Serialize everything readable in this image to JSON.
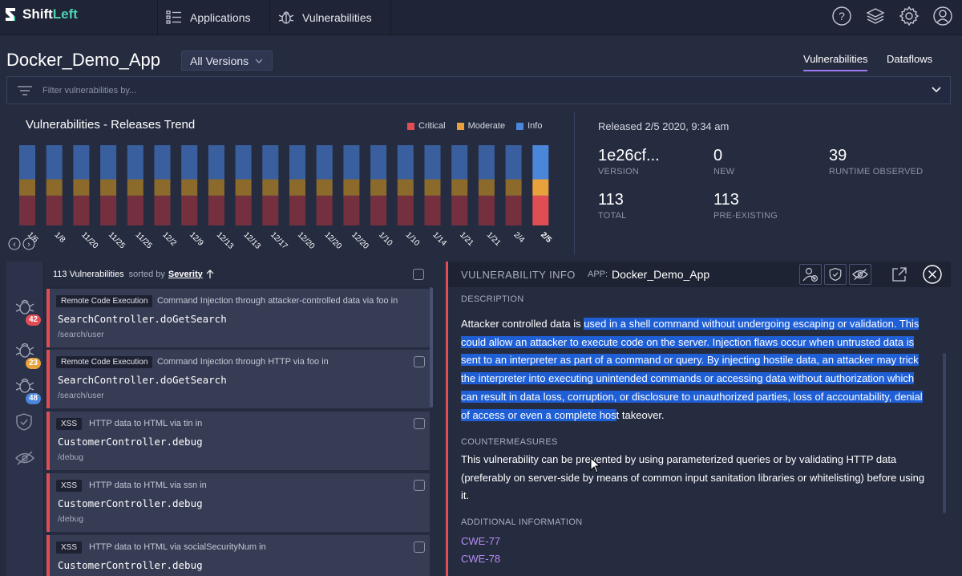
{
  "nav": {
    "logo_shift": "Shift",
    "logo_left": "Left",
    "applications": "Applications",
    "vulnerabilities": "Vulnerabilities",
    "icons": [
      "help-icon",
      "layers-icon",
      "settings-icon",
      "user-icon"
    ]
  },
  "header": {
    "app_title": "Docker_Demo_App",
    "versions": "All Versions",
    "tab_vulnerabilities": "Vulnerabilities",
    "tab_dataflows": "Dataflows",
    "filter_placeholder": "Filter vulnerabilities by..."
  },
  "chart_data": {
    "type": "bar",
    "title": "Vulnerabilities - Releases Trend",
    "categories": [
      "1/6",
      "1/8",
      "11/20",
      "11/25",
      "11/25",
      "12/2",
      "12/9",
      "12/13",
      "12/13",
      "12/17",
      "12/20",
      "12/20",
      "12/20",
      "1/10",
      "1/10",
      "1/14",
      "1/21",
      "1/21",
      "2/4",
      "2/5"
    ],
    "series": [
      {
        "name": "Critical",
        "color": "#e04d55",
        "values": [
          42,
          42,
          42,
          42,
          42,
          42,
          42,
          42,
          42,
          42,
          42,
          42,
          42,
          42,
          42,
          42,
          42,
          42,
          42,
          42
        ]
      },
      {
        "name": "Moderate",
        "color": "#e9a23b",
        "values": [
          23,
          23,
          23,
          23,
          23,
          23,
          23,
          23,
          23,
          23,
          23,
          23,
          23,
          23,
          23,
          23,
          23,
          23,
          23,
          23
        ]
      },
      {
        "name": "Info",
        "color": "#4a86d9",
        "values": [
          48,
          48,
          48,
          48,
          48,
          48,
          48,
          48,
          48,
          48,
          48,
          48,
          48,
          48,
          48,
          48,
          48,
          48,
          48,
          48
        ]
      }
    ],
    "selected_index": 19,
    "legend_position": "top-right",
    "grid": false
  },
  "release": {
    "released": "Released 2/5 2020, 9:34 am",
    "version_value": "1e26cf...",
    "version_label": "VERSION",
    "new_value": "0",
    "new_label": "NEW",
    "runtime_value": "39",
    "runtime_label": "RUNTIME OBSERVED",
    "total_value": "113",
    "total_label": "TOTAL",
    "preexisting_value": "113",
    "preexisting_label": "PRE-EXISTING"
  },
  "rail": {
    "critical_count": "42",
    "moderate_count": "23",
    "info_count": "48"
  },
  "list": {
    "count_label": "113 Vulnerabilities",
    "sorted_by": "sorted by",
    "sort_field": "Severity",
    "items": [
      {
        "tag": "Remote Code Execution",
        "desc": "Command Injection through attacker-controlled data via foo in",
        "method": "SearchController.doGetSearch",
        "path": "/search/user"
      },
      {
        "tag": "Remote Code Execution",
        "desc": "Command Injection through HTTP via foo in",
        "method": "SearchController.doGetSearch",
        "path": "/search/user"
      },
      {
        "tag": "XSS",
        "desc": "HTTP data to HTML via tin in",
        "method": "CustomerController.debug",
        "path": "/debug"
      },
      {
        "tag": "XSS",
        "desc": "HTTP data to HTML via ssn in",
        "method": "CustomerController.debug",
        "path": "/debug"
      },
      {
        "tag": "XSS",
        "desc": "HTTP data to HTML via socialSecurityNum in",
        "method": "CustomerController.debug",
        "path": ""
      }
    ]
  },
  "info": {
    "title": "VULNERABILITY INFO",
    "app_label": "APP:",
    "app_name": "Docker_Demo_App",
    "description_heading": "DESCRIPTION",
    "description_plain": "Attacker controlled data is ",
    "description_highlight": "used in a shell command without undergoing escaping or validation. This could allow an attacker to execute code on the server. Injection flaws occur when untrusted data is sent to an interpreter as part of a command or query. By injecting hostile data, an attacker may trick the interpreter into executing unintended commands or accessing data without authorization which can result in data loss, corruption, or disclosure to unauthorized parties, loss of accountability, denial of access or even a complete hos",
    "description_tail": "t takeover.",
    "countermeasures_heading": "COUNTERMEASURES",
    "countermeasures": "This vulnerability can be prevented by using parameterized queries or by validating HTTP data (preferably on server-side by means of common input sanitation libraries or whitelisting) before using it.",
    "additional_heading": "ADDITIONAL INFORMATION",
    "links": [
      "CWE-77",
      "CWE-78"
    ]
  }
}
